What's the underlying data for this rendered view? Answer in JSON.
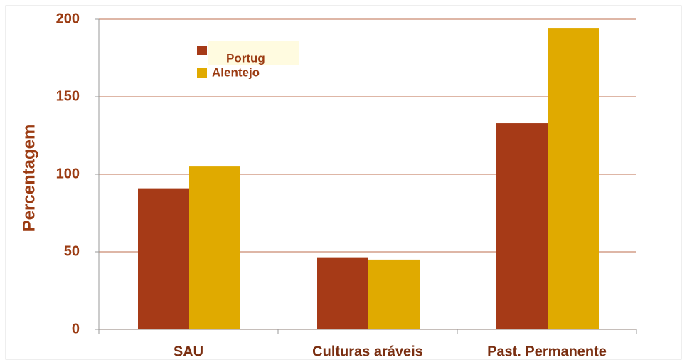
{
  "chart_data": {
    "type": "bar",
    "y_label": "Percentagem",
    "categories": [
      "SAU",
      "Culturas aráveis",
      "Past. Permanente"
    ],
    "series": [
      {
        "name": "Portug",
        "color": "#a63a17",
        "values": [
          91,
          46.5,
          133
        ]
      },
      {
        "name": "Alentejo",
        "color": "#e0aa00",
        "values": [
          105,
          45,
          194
        ]
      }
    ],
    "ylim": [
      0,
      200
    ],
    "yticks": [
      0,
      50,
      100,
      150,
      200
    ],
    "grid": true
  }
}
